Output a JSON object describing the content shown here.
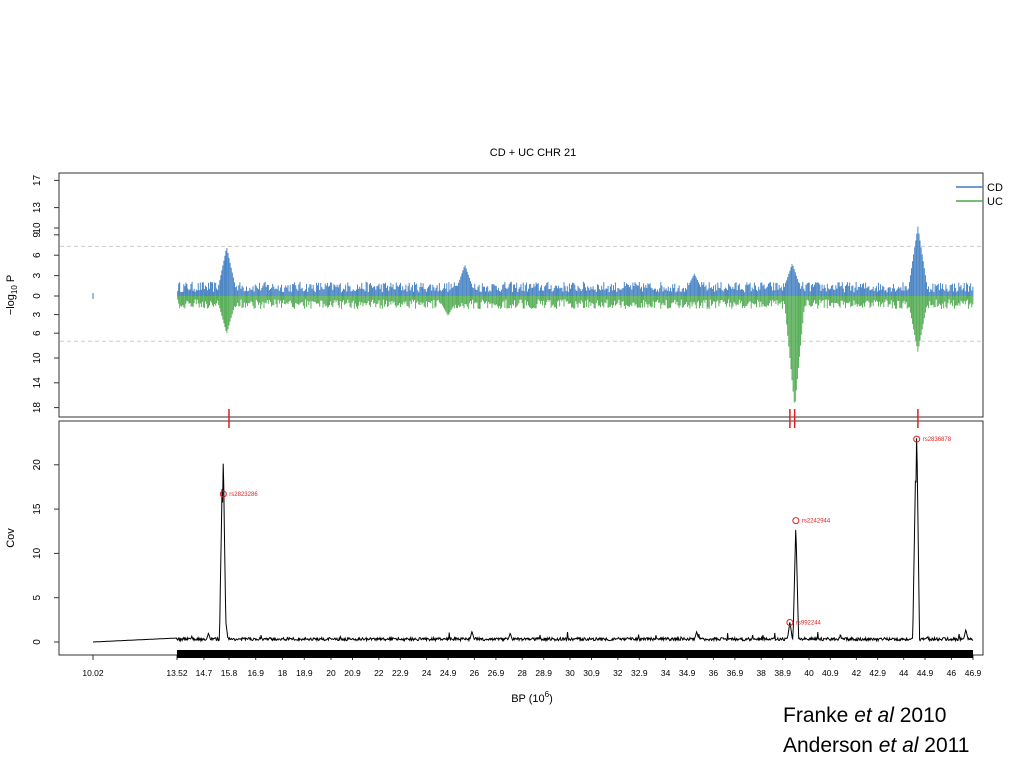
{
  "chart_data": [
    {
      "type": "line",
      "title": "CD + UC CHR 21",
      "ylabel": "−log10 P",
      "ylabel_main": "−log",
      "ylabel_sub": "10",
      "ylabel_tail": " P",
      "xlim": [
        10.02,
        46.9
      ],
      "ylim_upper": [
        0,
        17
      ],
      "ylim_lower": [
        0,
        18
      ],
      "yticks_upper": [
        17,
        13,
        10,
        9,
        6,
        3,
        0
      ],
      "yticks_lower": [
        3,
        6,
        10,
        14,
        18
      ],
      "significance_threshold": 7.3,
      "grid": false,
      "legend_position": "top-right",
      "series": [
        {
          "name": "CD",
          "color": "#3a7bbf",
          "direction": "up",
          "peaks": [
            [
              15.7,
              7.2
            ],
            [
              25.6,
              4.6
            ],
            [
              35.2,
              3.3
            ],
            [
              39.3,
              4.8
            ],
            [
              44.6,
              10.2
            ]
          ]
        },
        {
          "name": "UC",
          "color": "#4aa84a",
          "direction": "down",
          "peaks": [
            [
              15.7,
              6.1
            ],
            [
              24.9,
              3.2
            ],
            [
              39.4,
              18.0
            ],
            [
              44.6,
              9.0
            ]
          ]
        }
      ],
      "markers": [
        15.8,
        39.2,
        39.4,
        44.6
      ],
      "marker_color": "#e02020"
    },
    {
      "type": "line",
      "ylabel": "Cov",
      "xlabel": "BP (10",
      "xlabel_exp": "6",
      "xlabel_tail": ")",
      "ylim": [
        0,
        25
      ],
      "yticks": [
        0,
        5,
        10,
        15,
        20
      ],
      "xtick_values": [
        10.02,
        13.52,
        14.7,
        15.8,
        16.9,
        18,
        18.9,
        20,
        20.9,
        22,
        22.9,
        24,
        24.9,
        26,
        26.9,
        28,
        28.9,
        30,
        30.9,
        32,
        32.9,
        34,
        34.9,
        36,
        36.9,
        38,
        38.9,
        40,
        40.9,
        42,
        42.9,
        44,
        44.9,
        46,
        46.9
      ],
      "xtick_labels": [
        "10.02",
        "13.52",
        "14.7",
        "15.8",
        "16.9",
        "18",
        "18.9",
        "20",
        "20.9",
        "22",
        "22.9",
        "24",
        "24.9",
        "26",
        "26.9",
        "28",
        "28.9",
        "30",
        "30.9",
        "32",
        "32.9",
        "34",
        "34.9",
        "36",
        "36.9",
        "38",
        "38.9",
        "40",
        "40.9",
        "42",
        "42.9",
        "44",
        "44.9",
        "46",
        "46.9"
      ],
      "coverage_peaks": [
        [
          14.9,
          1.0
        ],
        [
          15.5,
          18.0
        ],
        [
          15.55,
          21.0
        ],
        [
          15.65,
          2.5
        ],
        [
          25.9,
          1.2
        ],
        [
          27.5,
          1.0
        ],
        [
          35.3,
          1.2
        ],
        [
          39.2,
          2.3
        ],
        [
          39.45,
          13.2
        ],
        [
          44.5,
          19.0
        ],
        [
          44.55,
          24.0
        ],
        [
          46.6,
          1.4
        ]
      ],
      "annotated_snps": [
        {
          "label": "rs2823286",
          "x": 15.55,
          "y": 16.7
        },
        {
          "label": "rs2242944",
          "x": 39.45,
          "y": 13.7
        },
        {
          "label": "rs992244",
          "x": 39.2,
          "y": 2.2
        },
        {
          "label": "rs2836878",
          "x": 44.55,
          "y": 22.9
        }
      ],
      "annotation_color": "#e02020",
      "line_color": "#000000"
    }
  ],
  "citations": {
    "line1_pre": "Franke ",
    "line1_italic": "et al",
    "line1_post": " 2010",
    "line2_pre": "Anderson ",
    "line2_italic": "et al",
    "line2_post": " 2011"
  }
}
